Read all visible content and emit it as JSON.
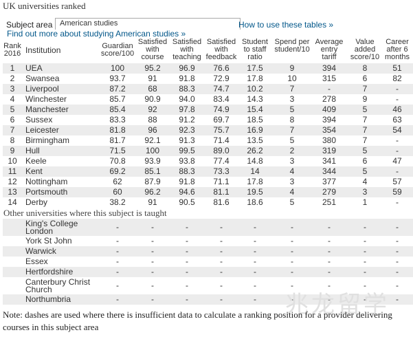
{
  "page": {
    "title": "UK universities ranked"
  },
  "controls": {
    "subject_label": "Subject area",
    "subject_value": "American studies",
    "how_link": "How to use these tables »",
    "find_link": "Find out more about studying American studies »"
  },
  "table": {
    "headers": [
      "Rank 2016",
      "Institution",
      "Guardian score/100",
      "Satisfied with course",
      "Satisfied with teaching",
      "Satisfied with feedback",
      "Student to staff ratio",
      "Spend per student/10",
      "Average entry tariff",
      "Value added score/10",
      "Career after 6 months"
    ],
    "rows": [
      [
        "1",
        "UEA",
        "100",
        "95.2",
        "96.9",
        "76.6",
        "17.5",
        "9",
        "394",
        "8",
        "51"
      ],
      [
        "2",
        "Swansea",
        "93.7",
        "91",
        "91.8",
        "72.9",
        "17.8",
        "10",
        "315",
        "6",
        "82"
      ],
      [
        "3",
        "Liverpool",
        "87.2",
        "68",
        "88.3",
        "74.7",
        "10.2",
        "7",
        "-",
        "7",
        "-"
      ],
      [
        "4",
        "Winchester",
        "85.7",
        "90.9",
        "94.0",
        "83.4",
        "14.3",
        "3",
        "278",
        "9",
        "-"
      ],
      [
        "5",
        "Manchester",
        "85.4",
        "92",
        "97.8",
        "74.9",
        "15.4",
        "5",
        "409",
        "5",
        "46"
      ],
      [
        "6",
        "Sussex",
        "83.3",
        "88",
        "91.2",
        "69.7",
        "18.5",
        "8",
        "394",
        "7",
        "63"
      ],
      [
        "7",
        "Leicester",
        "81.8",
        "96",
        "92.3",
        "75.7",
        "16.9",
        "7",
        "354",
        "7",
        "54"
      ],
      [
        "8",
        "Birmingham",
        "81.7",
        "92.1",
        "91.3",
        "71.4",
        "13.5",
        "5",
        "380",
        "7",
        "-"
      ],
      [
        "9",
        "Hull",
        "71.5",
        "100",
        "99.5",
        "89.0",
        "26.2",
        "2",
        "319",
        "5",
        "-"
      ],
      [
        "10",
        "Keele",
        "70.8",
        "93.9",
        "93.8",
        "77.4",
        "14.8",
        "3",
        "341",
        "6",
        "47"
      ],
      [
        "11",
        "Kent",
        "69.2",
        "85.1",
        "88.3",
        "73.3",
        "14",
        "4",
        "344",
        "5",
        "-"
      ],
      [
        "12",
        "Nottingham",
        "62",
        "87.9",
        "91.8",
        "71.1",
        "17.8",
        "3",
        "377",
        "4",
        "57"
      ],
      [
        "13",
        "Portsmouth",
        "60",
        "96.2",
        "94.6",
        "81.1",
        "19.5",
        "4",
        "279",
        "3",
        "59"
      ],
      [
        "14",
        "Derby",
        "38.2",
        "91",
        "90.5",
        "81.6",
        "18.6",
        "5",
        "251",
        "1",
        "-"
      ]
    ]
  },
  "other": {
    "title": "Other universities where this subject is taught",
    "rows": [
      [
        "King's College London",
        "-",
        "-",
        "-",
        "-",
        "-",
        "-",
        "-",
        "-",
        "-"
      ],
      [
        "York St John",
        "-",
        "-",
        "-",
        "-",
        "-",
        "-",
        "-",
        "-",
        "-"
      ],
      [
        "Warwick",
        "-",
        "-",
        "-",
        "-",
        "-",
        "-",
        "-",
        "-",
        "-"
      ],
      [
        "Essex",
        "-",
        "-",
        "-",
        "-",
        "-",
        "-",
        "-",
        "-",
        "-"
      ],
      [
        "Hertfordshire",
        "-",
        "-",
        "-",
        "-",
        "-",
        "-",
        "-",
        "-",
        "-"
      ],
      [
        "Canterbury Christ Church",
        "-",
        "-",
        "-",
        "-",
        "-",
        "-",
        "-",
        "-",
        "-"
      ],
      [
        "Northumbria",
        "-",
        "-",
        "-",
        "-",
        "-",
        "-",
        "-",
        "-",
        "-"
      ]
    ]
  },
  "note": "Note: dashes are used where there is insufficient data to calculate a ranking position for a provider delivering courses in this subject area",
  "watermark": "兆龙留学",
  "colors": {
    "link": "#005689",
    "alt_row": "#ececec"
  }
}
